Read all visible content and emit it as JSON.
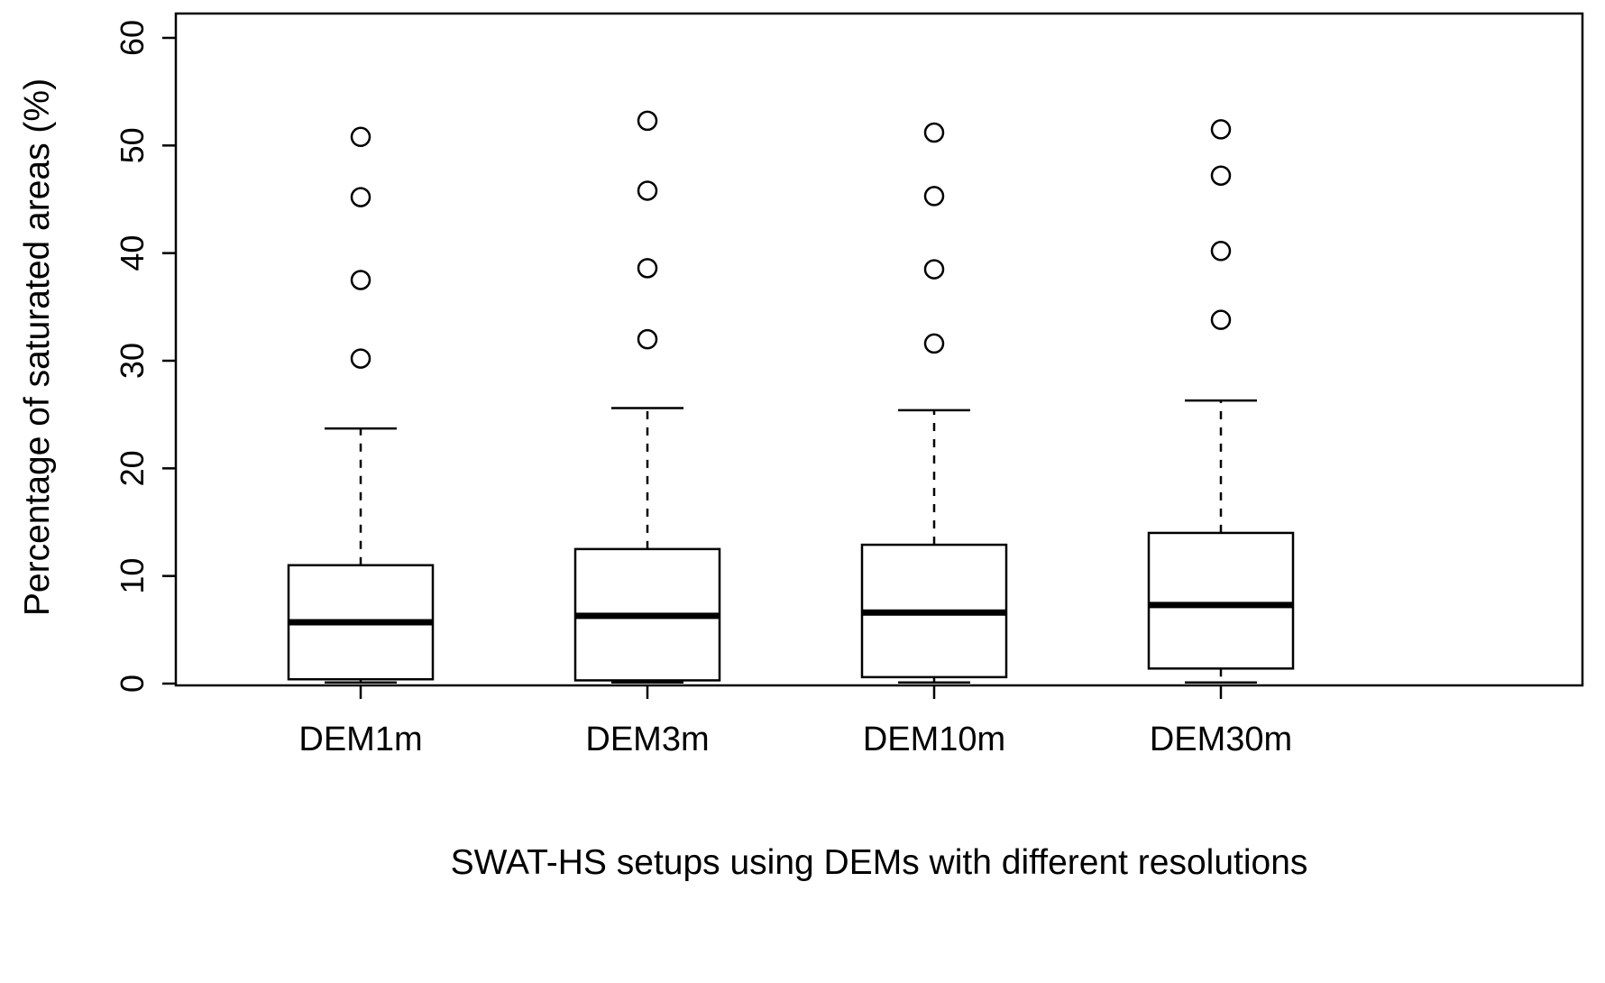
{
  "chart_data": {
    "type": "boxplot",
    "title": "",
    "xlabel": "SWAT-HS setups using DEMs with different resolutions",
    "ylabel": "Percentage of saturated areas (%)",
    "ylim": [
      0,
      60
    ],
    "yticks": [
      0,
      10,
      20,
      30,
      40,
      50,
      60
    ],
    "categories": [
      "DEM1m",
      "DEM3m",
      "DEM10m",
      "DEM30m"
    ],
    "grid": false,
    "legend": "none",
    "series": [
      {
        "name": "DEM1m",
        "lower_whisker": 0.1,
        "q1": 0.4,
        "median": 5.7,
        "q3": 11.0,
        "upper_whisker": 23.7,
        "outliers": [
          30.2,
          37.5,
          45.2,
          50.8
        ]
      },
      {
        "name": "DEM3m",
        "lower_whisker": 0.1,
        "q1": 0.3,
        "median": 6.3,
        "q3": 12.5,
        "upper_whisker": 25.6,
        "outliers": [
          32.0,
          38.6,
          45.8,
          52.3
        ]
      },
      {
        "name": "DEM10m",
        "lower_whisker": 0.1,
        "q1": 0.6,
        "median": 6.6,
        "q3": 12.9,
        "upper_whisker": 25.4,
        "outliers": [
          31.6,
          38.5,
          45.3,
          51.2
        ]
      },
      {
        "name": "DEM30m",
        "lower_whisker": 0.1,
        "q1": 1.4,
        "median": 7.3,
        "q3": 14.0,
        "upper_whisker": 26.3,
        "outliers": [
          33.8,
          40.2,
          47.2,
          51.5
        ]
      }
    ],
    "colors": {
      "stroke": "#000000",
      "fill": "#ffffff",
      "background": "#ffffff"
    }
  }
}
